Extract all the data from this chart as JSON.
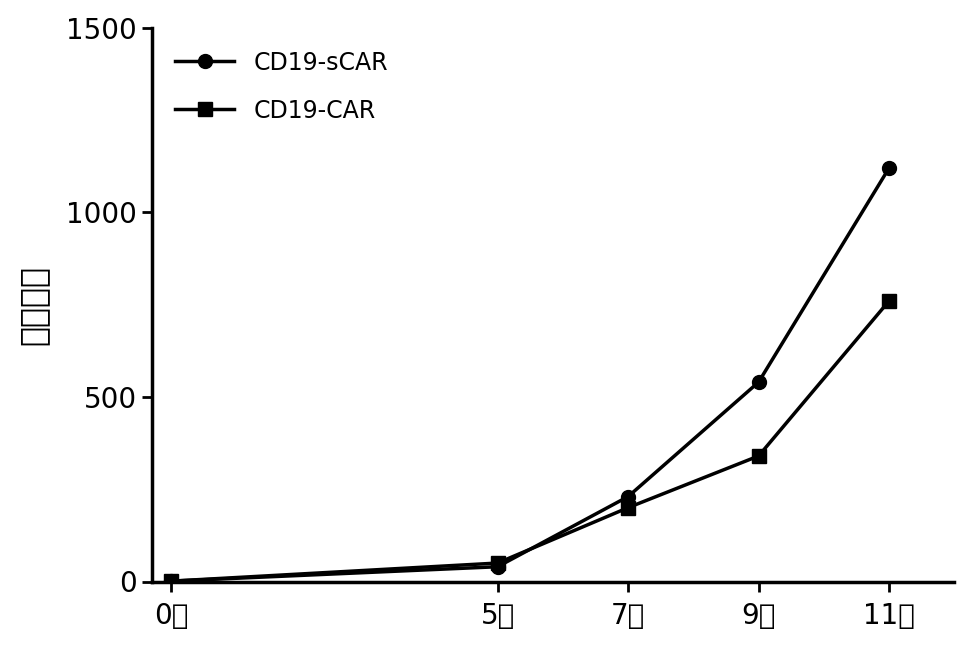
{
  "scar_x": [
    0,
    5,
    7,
    9,
    11
  ],
  "scar_y": [
    1,
    40,
    230,
    540,
    1120
  ],
  "car_x": [
    0,
    5,
    7,
    9,
    11
  ],
  "car_y": [
    1,
    50,
    200,
    340,
    760
  ],
  "scar_label": "CD19-sCAR",
  "car_label": "CD19-CAR",
  "xlabel_ticks": [
    0,
    5,
    7,
    9,
    11
  ],
  "xlabel_ticklabels": [
    "0天",
    "5天",
    "7天",
    "9天",
    "11天"
  ],
  "ylabel": "相对倍数",
  "ylim": [
    0,
    1500
  ],
  "yticks": [
    0,
    500,
    1000,
    1500
  ],
  "line_color": "#000000",
  "background_color": "#ffffff",
  "linewidth": 2.5,
  "markersize": 10
}
